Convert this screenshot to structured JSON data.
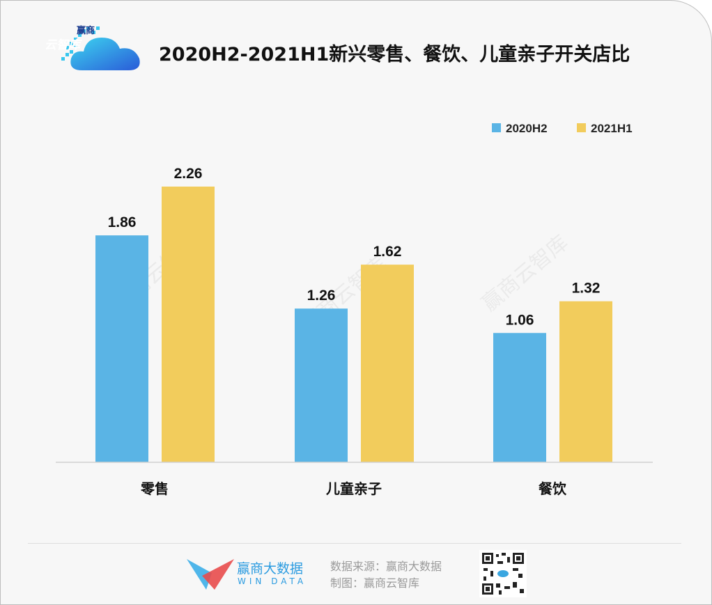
{
  "logo": {
    "line1": "赢商",
    "line2": "云智库"
  },
  "chart_data": {
    "type": "bar",
    "title": "2020H2-2021H1新兴零售、餐饮、儿童亲子开关店比",
    "categories": [
      "零售",
      "儿童亲子",
      "餐饮"
    ],
    "series": [
      {
        "name": "2020H2",
        "color": "#5ab4e5",
        "values": [
          1.86,
          1.26,
          1.06
        ]
      },
      {
        "name": "2021H1",
        "color": "#f2cc5c",
        "values": [
          2.26,
          1.62,
          1.32
        ]
      }
    ],
    "xlabel": "",
    "ylabel": "",
    "ylim": [
      0,
      2.26
    ],
    "grid": false,
    "legend_position": "top-right",
    "watermark": "赢商云智库"
  },
  "footer": {
    "brand_cn": "赢商大数据",
    "brand_en": "WIN DATA",
    "source": "数据来源：赢商大数据",
    "made_by": "制图：赢商云智库"
  }
}
